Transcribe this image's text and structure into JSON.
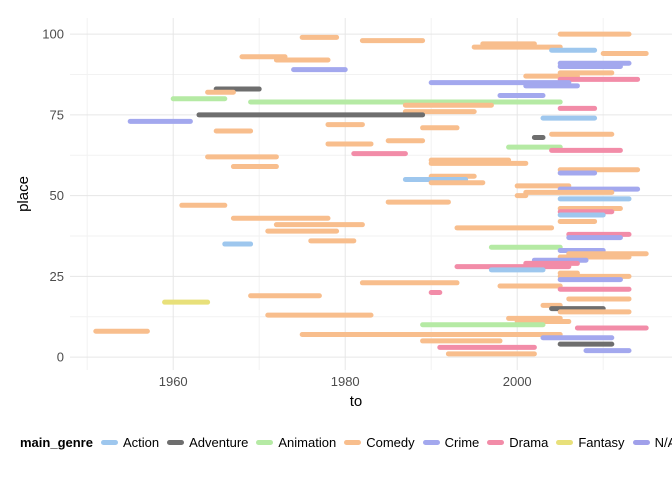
{
  "chart_data": {
    "type": "segment",
    "xlabel": "to",
    "ylabel": "place",
    "xlim": [
      1948,
      2018
    ],
    "ylim": [
      -4,
      105
    ],
    "xticks": [
      1960,
      1980,
      2000
    ],
    "yticks": [
      0,
      25,
      50,
      75,
      100
    ],
    "grid": true,
    "legend_title": "main_genre",
    "legend_position": "bottom",
    "genres": [
      {
        "name": "Action",
        "color": "#9ec7ee"
      },
      {
        "name": "Adventure",
        "color": "#6e6e6e"
      },
      {
        "name": "Animation",
        "color": "#b5eaa4"
      },
      {
        "name": "Comedy",
        "color": "#f8be8d"
      },
      {
        "name": "Crime",
        "color": "#a3a8ee"
      },
      {
        "name": "Drama",
        "color": "#f28ca8"
      },
      {
        "name": "Fantasy",
        "color": "#e8e07a"
      },
      {
        "name": "N/A",
        "color": "#a0a0ea"
      }
    ],
    "segments": [
      {
        "place": 100,
        "from": 2005,
        "to": 2013,
        "genre": "Comedy"
      },
      {
        "place": 99,
        "from": 1975,
        "to": 1979,
        "genre": "Comedy"
      },
      {
        "place": 98,
        "from": 1982,
        "to": 1989,
        "genre": "Comedy"
      },
      {
        "place": 97,
        "from": 1996,
        "to": 2002,
        "genre": "Comedy"
      },
      {
        "place": 96,
        "from": 1995,
        "to": 2005,
        "genre": "Comedy"
      },
      {
        "place": 95,
        "from": 2004,
        "to": 2009,
        "genre": "Action"
      },
      {
        "place": 94,
        "from": 2010,
        "to": 2015,
        "genre": "Comedy"
      },
      {
        "place": 93,
        "from": 1968,
        "to": 1973,
        "genre": "Comedy"
      },
      {
        "place": 92,
        "from": 1972,
        "to": 1978,
        "genre": "Comedy"
      },
      {
        "place": 91,
        "from": 2005,
        "to": 2013,
        "genre": "Crime"
      },
      {
        "place": 90,
        "from": 2005,
        "to": 2012,
        "genre": "Crime"
      },
      {
        "place": 89,
        "from": 1974,
        "to": 1980,
        "genre": "Crime"
      },
      {
        "place": 88,
        "from": 2005,
        "to": 2011,
        "genre": "Comedy"
      },
      {
        "place": 87,
        "from": 2001,
        "to": 2007,
        "genre": "Comedy"
      },
      {
        "place": 86,
        "from": 2005,
        "to": 2014,
        "genre": "Drama"
      },
      {
        "place": 85,
        "from": 1990,
        "to": 2006,
        "genre": "Crime"
      },
      {
        "place": 84,
        "from": 2001,
        "to": 2007,
        "genre": "Crime"
      },
      {
        "place": 83,
        "from": 1965,
        "to": 1970,
        "genre": "Adventure"
      },
      {
        "place": 82,
        "from": 1964,
        "to": 1967,
        "genre": "Comedy"
      },
      {
        "place": 81,
        "from": 1998,
        "to": 2003,
        "genre": "Crime"
      },
      {
        "place": 80,
        "from": 1960,
        "to": 1966,
        "genre": "Animation"
      },
      {
        "place": 79,
        "from": 1969,
        "to": 2005,
        "genre": "Animation"
      },
      {
        "place": 78,
        "from": 1987,
        "to": 1997,
        "genre": "Comedy"
      },
      {
        "place": 77,
        "from": 2005,
        "to": 2009,
        "genre": "Drama"
      },
      {
        "place": 76,
        "from": 1987,
        "to": 1995,
        "genre": "Comedy"
      },
      {
        "place": 75,
        "from": 1963,
        "to": 1989,
        "genre": "Adventure"
      },
      {
        "place": 74,
        "from": 2003,
        "to": 2009,
        "genre": "Action"
      },
      {
        "place": 73,
        "from": 1955,
        "to": 1962,
        "genre": "Crime"
      },
      {
        "place": 72,
        "from": 1978,
        "to": 1982,
        "genre": "Comedy"
      },
      {
        "place": 71,
        "from": 1989,
        "to": 1993,
        "genre": "Comedy"
      },
      {
        "place": 70,
        "from": 1965,
        "to": 1969,
        "genre": "Comedy"
      },
      {
        "place": 69,
        "from": 2004,
        "to": 2011,
        "genre": "Comedy"
      },
      {
        "place": 68,
        "from": 2002,
        "to": 2003,
        "genre": "Adventure"
      },
      {
        "place": 67,
        "from": 1985,
        "to": 1989,
        "genre": "Comedy"
      },
      {
        "place": 66,
        "from": 1978,
        "to": 1983,
        "genre": "Comedy"
      },
      {
        "place": 65,
        "from": 1999,
        "to": 2005,
        "genre": "Animation"
      },
      {
        "place": 64,
        "from": 2004,
        "to": 2012,
        "genre": "Drama"
      },
      {
        "place": 63,
        "from": 1981,
        "to": 1987,
        "genre": "Drama"
      },
      {
        "place": 62,
        "from": 1964,
        "to": 1972,
        "genre": "Comedy"
      },
      {
        "place": 61,
        "from": 1990,
        "to": 1999,
        "genre": "Comedy"
      },
      {
        "place": 60,
        "from": 1990,
        "to": 2001,
        "genre": "Comedy"
      },
      {
        "place": 59,
        "from": 1967,
        "to": 1972,
        "genre": "Comedy"
      },
      {
        "place": 58,
        "from": 2005,
        "to": 2014,
        "genre": "Comedy"
      },
      {
        "place": 57,
        "from": 2005,
        "to": 2009,
        "genre": "Crime"
      },
      {
        "place": 56,
        "from": 1990,
        "to": 1995,
        "genre": "Comedy"
      },
      {
        "place": 55,
        "from": 1987,
        "to": 1994,
        "genre": "Action"
      },
      {
        "place": 54,
        "from": 1990,
        "to": 1996,
        "genre": "Comedy"
      },
      {
        "place": 53,
        "from": 2000,
        "to": 2006,
        "genre": "Comedy"
      },
      {
        "place": 52,
        "from": 2005,
        "to": 2014,
        "genre": "Crime"
      },
      {
        "place": 51,
        "from": 2001,
        "to": 2011,
        "genre": "Comedy"
      },
      {
        "place": 50,
        "from": 2000,
        "to": 2001,
        "genre": "Comedy"
      },
      {
        "place": 49,
        "from": 2005,
        "to": 2013,
        "genre": "Action"
      },
      {
        "place": 48,
        "from": 1985,
        "to": 1992,
        "genre": "Comedy"
      },
      {
        "place": 47,
        "from": 1961,
        "to": 1966,
        "genre": "Comedy"
      },
      {
        "place": 46,
        "from": 2005,
        "to": 2012,
        "genre": "Comedy"
      },
      {
        "place": 45,
        "from": 2005,
        "to": 2011,
        "genre": "Drama"
      },
      {
        "place": 44,
        "from": 2005,
        "to": 2010,
        "genre": "Action"
      },
      {
        "place": 43,
        "from": 1967,
        "to": 1978,
        "genre": "Comedy"
      },
      {
        "place": 42,
        "from": 2005,
        "to": 2009,
        "genre": "Comedy"
      },
      {
        "place": 41,
        "from": 1972,
        "to": 1982,
        "genre": "Comedy"
      },
      {
        "place": 40,
        "from": 1993,
        "to": 2004,
        "genre": "Comedy"
      },
      {
        "place": 39,
        "from": 1971,
        "to": 1979,
        "genre": "Comedy"
      },
      {
        "place": 38,
        "from": 2006,
        "to": 2013,
        "genre": "Drama"
      },
      {
        "place": 37,
        "from": 2006,
        "to": 2012,
        "genre": "Crime"
      },
      {
        "place": 36,
        "from": 1976,
        "to": 1981,
        "genre": "Comedy"
      },
      {
        "place": 35,
        "from": 1966,
        "to": 1969,
        "genre": "Action"
      },
      {
        "place": 34,
        "from": 1997,
        "to": 2005,
        "genre": "Animation"
      },
      {
        "place": 33,
        "from": 2005,
        "to": 2010,
        "genre": "Crime"
      },
      {
        "place": 32,
        "from": 2006,
        "to": 2015,
        "genre": "Comedy"
      },
      {
        "place": 31,
        "from": 2005,
        "to": 2013,
        "genre": "Comedy"
      },
      {
        "place": 30,
        "from": 2002,
        "to": 2008,
        "genre": "Crime"
      },
      {
        "place": 29,
        "from": 2001,
        "to": 2007,
        "genre": "Drama"
      },
      {
        "place": 28,
        "from": 1993,
        "to": 2006,
        "genre": "Drama"
      },
      {
        "place": 27,
        "from": 1997,
        "to": 2003,
        "genre": "Action"
      },
      {
        "place": 26,
        "from": 2005,
        "to": 2007,
        "genre": "Comedy"
      },
      {
        "place": 25,
        "from": 2005,
        "to": 2013,
        "genre": "Comedy"
      },
      {
        "place": 24,
        "from": 2005,
        "to": 2012,
        "genre": "Crime"
      },
      {
        "place": 23,
        "from": 1982,
        "to": 1993,
        "genre": "Comedy"
      },
      {
        "place": 22,
        "from": 1998,
        "to": 2005,
        "genre": "Comedy"
      },
      {
        "place": 21,
        "from": 2005,
        "to": 2013,
        "genre": "Drama"
      },
      {
        "place": 20,
        "from": 1990,
        "to": 1991,
        "genre": "Drama"
      },
      {
        "place": 19,
        "from": 1969,
        "to": 1977,
        "genre": "Comedy"
      },
      {
        "place": 18,
        "from": 2006,
        "to": 2013,
        "genre": "Comedy"
      },
      {
        "place": 17,
        "from": 1959,
        "to": 1964,
        "genre": "Fantasy"
      },
      {
        "place": 16,
        "from": 2003,
        "to": 2005,
        "genre": "Comedy"
      },
      {
        "place": 15,
        "from": 2004,
        "to": 2010,
        "genre": "Adventure"
      },
      {
        "place": 14,
        "from": 2005,
        "to": 2013,
        "genre": "Comedy"
      },
      {
        "place": 13,
        "from": 1971,
        "to": 1983,
        "genre": "Comedy"
      },
      {
        "place": 12,
        "from": 1999,
        "to": 2005,
        "genre": "Comedy"
      },
      {
        "place": 11,
        "from": 2000,
        "to": 2006,
        "genre": "Comedy"
      },
      {
        "place": 10,
        "from": 1989,
        "to": 2003,
        "genre": "Animation"
      },
      {
        "place": 9,
        "from": 2007,
        "to": 2015,
        "genre": "Drama"
      },
      {
        "place": 8,
        "from": 1951,
        "to": 1957,
        "genre": "Comedy"
      },
      {
        "place": 7,
        "from": 1975,
        "to": 2005,
        "genre": "Comedy"
      },
      {
        "place": 6,
        "from": 2003,
        "to": 2011,
        "genre": "Crime"
      },
      {
        "place": 5,
        "from": 1989,
        "to": 1998,
        "genre": "Comedy"
      },
      {
        "place": 4,
        "from": 2005,
        "to": 2011,
        "genre": "Adventure"
      },
      {
        "place": 3,
        "from": 1991,
        "to": 2002,
        "genre": "Drama"
      },
      {
        "place": 2,
        "from": 2008,
        "to": 2013,
        "genre": "Crime"
      },
      {
        "place": 1,
        "from": 1992,
        "to": 2002,
        "genre": "Comedy"
      }
    ]
  }
}
